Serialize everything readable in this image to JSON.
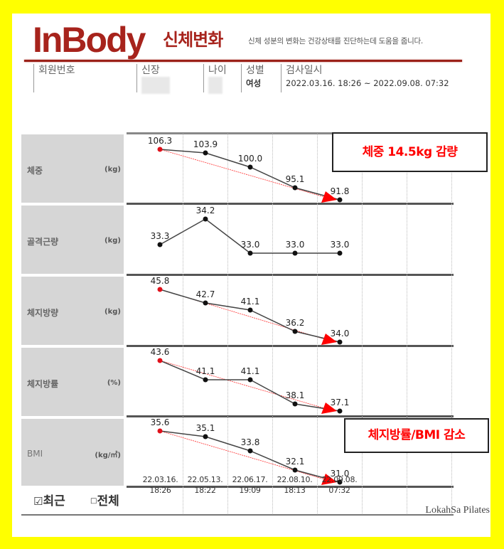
{
  "header": {
    "logo": "InBody",
    "logo_subtitle": "신체변화",
    "tagline": "신체 성분의 변화는 건강상태를 진단하는데 도움을 줍니다."
  },
  "member_info": {
    "member_no_label": "회원번호",
    "member_no_value": "",
    "height_label": "신장",
    "height_value": "(blurred)",
    "age_label": "나이",
    "age_value": "(blurred)",
    "gender_label": "성별",
    "gender_value": "여성",
    "test_date_label": "검사일시",
    "test_date_value": "2022.03.16. 18:26 ~ 2022.09.08. 07:32"
  },
  "callouts": {
    "weight": "체중 14.5kg 감량",
    "fat_bmi": "체지방률/BMI 감소"
  },
  "filter": {
    "recent_label": "최근",
    "recent_checked": true,
    "all_label": "전체",
    "all_checked": false
  },
  "footer": {
    "brand": "LokahSa Pilates"
  },
  "colors": {
    "background": "#ffff00",
    "brand_red": "#a7231c",
    "callout_red": "#ff0000",
    "label_gray": "#d6d6d6",
    "first_point": "#e0101a"
  },
  "chart_data": {
    "type": "line",
    "title": "InBody 신체변화",
    "x": [
      "22.03.16. 18:26",
      "22.05.13. 18:22",
      "22.06.17. 19:09",
      "22.08.10. 18:13",
      "22.09.08. 07:32"
    ],
    "dates": [
      {
        "date": "22.03.16.",
        "time": "18:26"
      },
      {
        "date": "22.05.13.",
        "time": "18:22"
      },
      {
        "date": "22.06.17.",
        "time": "19:09"
      },
      {
        "date": "22.08.10.",
        "time": "18:13"
      },
      {
        "date": "22.09.08.",
        "time": "07:32"
      }
    ],
    "grid": true,
    "series": [
      {
        "name": "체중",
        "unit": "(kg)",
        "values": [
          106.3,
          103.9,
          100.0,
          95.1,
          91.8
        ],
        "labels": [
          "106.3",
          "103.9",
          "100.0",
          "95.1",
          "91.8"
        ],
        "trend_arrow": true
      },
      {
        "name": "골격근량",
        "unit": "(kg)",
        "values": [
          33.3,
          34.2,
          33.0,
          33.0,
          33.0
        ],
        "labels": [
          "33.3",
          "34.2",
          "33.0",
          "33.0",
          "33.0"
        ],
        "trend_arrow": false
      },
      {
        "name": "체지방량",
        "unit": "(kg)",
        "values": [
          45.8,
          42.7,
          41.1,
          36.2,
          34.0
        ],
        "labels": [
          "45.8",
          "42.7",
          "41.1",
          "36.2",
          "34.0"
        ],
        "trend_arrow": true
      },
      {
        "name": "체지방률",
        "unit": "(%)",
        "values": [
          43.6,
          41.1,
          41.1,
          38.1,
          37.1
        ],
        "labels": [
          "43.6",
          "41.1",
          "41.1",
          "38.1",
          "37.1"
        ],
        "trend_arrow": true
      },
      {
        "name": "BMI",
        "unit": "(kg/㎡)",
        "values": [
          35.6,
          35.1,
          33.8,
          32.1,
          31.0
        ],
        "labels": [
          "35.6",
          "35.1",
          "33.8",
          "32.1",
          "31.0"
        ],
        "trend_arrow": true
      }
    ]
  }
}
